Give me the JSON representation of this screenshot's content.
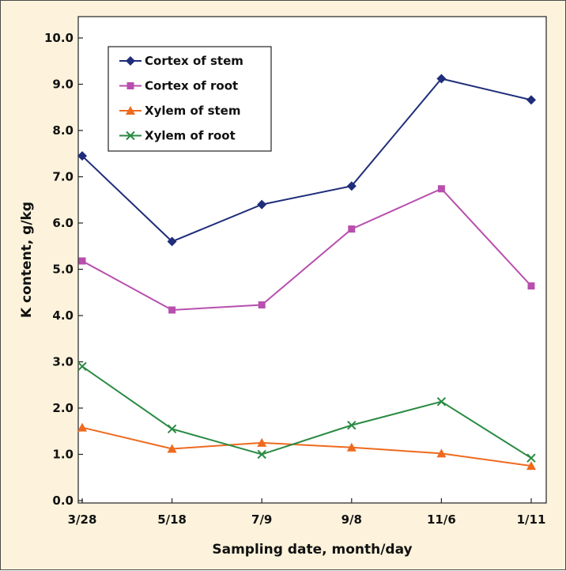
{
  "chart_data": {
    "type": "line",
    "title": "",
    "xlabel": "Sampling date, month/day",
    "ylabel": "K content, g/kg",
    "categories": [
      "3/28",
      "5/18",
      "7/9",
      "9/8",
      "11/6",
      "1/11"
    ],
    "ylim": [
      0,
      10
    ],
    "yticks": [
      "0.0",
      "1.0",
      "2.0",
      "3.0",
      "4.0",
      "5.0",
      "6.0",
      "7.0",
      "8.0",
      "9.0",
      "10.0"
    ],
    "grid": false,
    "legend_position": "top-left",
    "series": [
      {
        "name": "Cortex of stem",
        "values": [
          7.45,
          5.6,
          6.4,
          6.8,
          9.12,
          8.66
        ],
        "color": "#1f2d7a",
        "marker": "diamond"
      },
      {
        "name": "Cortex of root",
        "values": [
          5.18,
          4.12,
          4.23,
          5.87,
          6.74,
          4.64
        ],
        "color": "#b84fae",
        "marker": "square"
      },
      {
        "name": "Xylem of stem",
        "values": [
          1.58,
          1.12,
          1.25,
          1.15,
          1.02,
          0.75
        ],
        "color": "#ee6a1e",
        "marker": "triangle"
      },
      {
        "name": "Xylem of root",
        "values": [
          2.9,
          1.55,
          1.0,
          1.63,
          2.14,
          0.92
        ],
        "color": "#2a8a43",
        "marker": "x"
      }
    ]
  },
  "colors": {
    "background": "#fdf3dc",
    "plot_area": "#ffffff"
  }
}
